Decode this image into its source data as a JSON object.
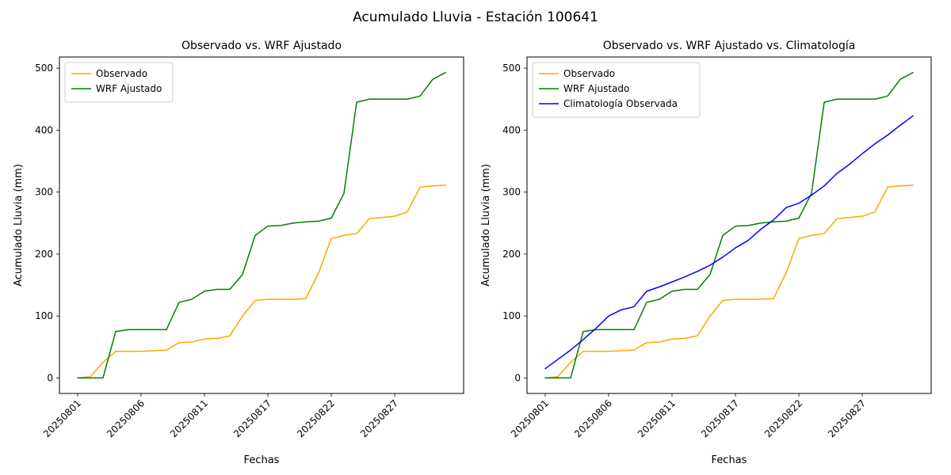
{
  "figure": {
    "title": "Acumulado Lluvia - Estación 100641"
  },
  "chart_data": [
    {
      "type": "line",
      "title": "Observado vs. WRF Ajustado",
      "xlabel": "Fechas",
      "ylabel": "Acumulado Lluvia (mm)",
      "legend_position": "upper-left",
      "grid": false,
      "ylim": [
        -25,
        518
      ],
      "y_ticks": [
        0,
        100,
        200,
        300,
        400,
        500
      ],
      "x_ticks": [
        "20250801",
        "20250806",
        "20250811",
        "20250817",
        "20250822",
        "20250827"
      ],
      "categories": [
        "20250801",
        "20250802",
        "20250803",
        "20250804",
        "20250805",
        "20250806",
        "20250807",
        "20250808",
        "20250809",
        "20250810",
        "20250811",
        "20250812",
        "20250813",
        "20250814",
        "20250815",
        "20250817",
        "20250818",
        "20250819",
        "20250820",
        "20250821",
        "20250822",
        "20250823",
        "20250824",
        "20250825",
        "20250826",
        "20250827",
        "20250828",
        "20250829",
        "20250830",
        "20250831"
      ],
      "series": [
        {
          "name": "Observado",
          "color": "#ffa500",
          "values": [
            0,
            2,
            25,
            43,
            43,
            43,
            44,
            45,
            57,
            58,
            63,
            64,
            68,
            100,
            125,
            127,
            127,
            127,
            128,
            170,
            225,
            230,
            233,
            257,
            259,
            261,
            268,
            308,
            310,
            311
          ]
        },
        {
          "name": "WRF Ajustado",
          "color": "#008000",
          "values": [
            0,
            0,
            0,
            75,
            78,
            78,
            78,
            78,
            122,
            127,
            140,
            143,
            143,
            167,
            230,
            245,
            246,
            250,
            252,
            253,
            258,
            298,
            445,
            450,
            450,
            450,
            450,
            455,
            482,
            493
          ]
        }
      ]
    },
    {
      "type": "line",
      "title": "Observado vs. WRF Ajustado vs. Climatología",
      "xlabel": "Fechas",
      "ylabel": "Acumulado Lluvia (mm)",
      "legend_position": "upper-left",
      "grid": false,
      "ylim": [
        -25,
        518
      ],
      "y_ticks": [
        0,
        100,
        200,
        300,
        400,
        500
      ],
      "x_ticks": [
        "20250801",
        "20250806",
        "20250811",
        "20250817",
        "20250822",
        "20250827"
      ],
      "categories": [
        "20250801",
        "20250802",
        "20250803",
        "20250804",
        "20250805",
        "20250806",
        "20250807",
        "20250808",
        "20250809",
        "20250810",
        "20250811",
        "20250812",
        "20250813",
        "20250814",
        "20250815",
        "20250817",
        "20250818",
        "20250819",
        "20250820",
        "20250821",
        "20250822",
        "20250823",
        "20250824",
        "20250825",
        "20250826",
        "20250827",
        "20250828",
        "20250829",
        "20250830",
        "20250831"
      ],
      "series": [
        {
          "name": "Observado",
          "color": "#ffa500",
          "values": [
            0,
            2,
            25,
            43,
            43,
            43,
            44,
            45,
            57,
            58,
            63,
            64,
            68,
            100,
            125,
            127,
            127,
            127,
            128,
            170,
            225,
            230,
            233,
            257,
            259,
            261,
            268,
            308,
            310,
            311
          ]
        },
        {
          "name": "WRF Ajustado",
          "color": "#008000",
          "values": [
            0,
            0,
            0,
            75,
            78,
            78,
            78,
            78,
            122,
            127,
            140,
            143,
            143,
            167,
            230,
            245,
            246,
            250,
            252,
            253,
            258,
            298,
            445,
            450,
            450,
            450,
            450,
            455,
            482,
            493
          ]
        },
        {
          "name": "Climatología Observada",
          "color": "#0000ff",
          "values": [
            15,
            30,
            45,
            62,
            80,
            100,
            110,
            115,
            140,
            147,
            155,
            163,
            172,
            182,
            195,
            210,
            222,
            240,
            255,
            275,
            282,
            295,
            310,
            330,
            345,
            362,
            378,
            392,
            408,
            423
          ]
        }
      ]
    }
  ]
}
